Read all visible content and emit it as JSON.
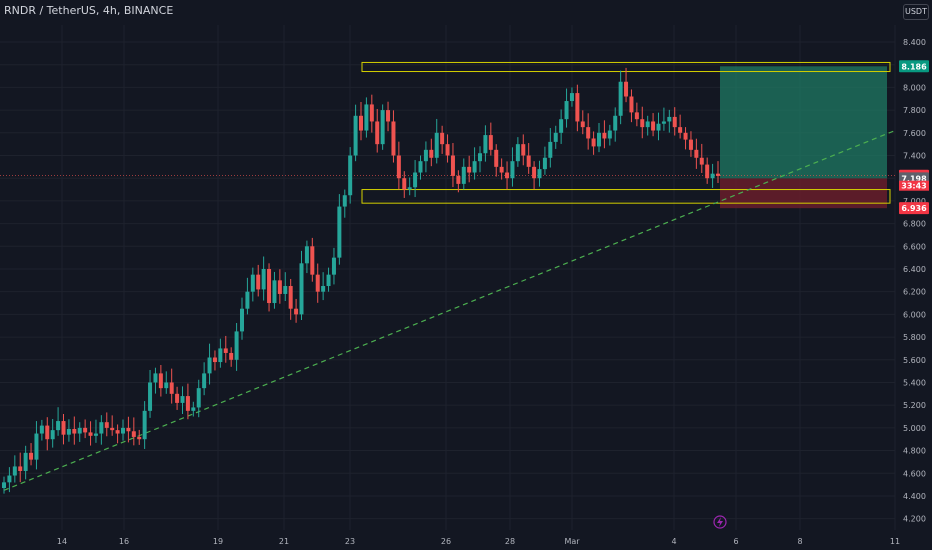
{
  "header": {
    "title": "RNDR / TetherUS, 4h, BINANCE",
    "currency": "USDT",
    "countdown": "33:43"
  },
  "colors": {
    "background": "#131722",
    "grid": "#1e222d",
    "up": "#26a69a",
    "down": "#ef5350",
    "zone": "#d4d000",
    "trendline": "#4caf50",
    "target_fill": "#1f7a63",
    "stop_fill": "#6e1e2c"
  },
  "chart_data": {
    "type": "candlestick",
    "interval": "4h",
    "ylim": [
      4.1,
      8.55
    ],
    "y_ticks": [
      4.2,
      4.4,
      4.6,
      4.8,
      5.0,
      5.2,
      5.4,
      5.6,
      5.8,
      6.0,
      6.2,
      6.4,
      6.6,
      6.8,
      7.0,
      7.2,
      7.4,
      7.6,
      7.8,
      8.0,
      8.2,
      8.4
    ],
    "x_ticks": [
      "14",
      "16",
      "19",
      "21",
      "23",
      "26",
      "28",
      "Mar",
      "4",
      "6",
      "8",
      "11"
    ],
    "close_series": [
      4.52,
      4.58,
      4.66,
      4.62,
      4.78,
      4.72,
      4.95,
      5.02,
      4.9,
      4.98,
      5.06,
      4.94,
      4.99,
      4.95,
      5.0,
      4.96,
      4.93,
      4.95,
      5.05,
      5.0,
      4.98,
      4.95,
      5.0,
      4.97,
      4.92,
      4.9,
      5.15,
      5.4,
      5.48,
      5.35,
      5.4,
      5.3,
      5.22,
      5.28,
      5.15,
      5.18,
      5.35,
      5.48,
      5.62,
      5.58,
      5.7,
      5.66,
      5.6,
      5.85,
      6.05,
      6.2,
      6.35,
      6.22,
      6.4,
      6.1,
      6.3,
      6.18,
      6.25,
      6.05,
      6.0,
      6.45,
      6.6,
      6.35,
      6.2,
      6.25,
      6.35,
      6.5,
      6.95,
      7.05,
      7.4,
      7.75,
      7.62,
      7.85,
      7.7,
      7.5,
      7.8,
      7.7,
      7.4,
      7.2,
      7.1,
      7.12,
      7.25,
      7.35,
      7.45,
      7.38,
      7.6,
      7.5,
      7.4,
      7.22,
      7.15,
      7.3,
      7.25,
      7.35,
      7.42,
      7.58,
      7.45,
      7.3,
      7.25,
      7.2,
      7.35,
      7.5,
      7.4,
      7.3,
      7.2,
      7.28,
      7.38,
      7.52,
      7.6,
      7.72,
      7.88,
      7.95,
      7.7,
      7.65,
      7.55,
      7.48,
      7.6,
      7.55,
      7.62,
      7.75,
      8.05,
      7.92,
      7.78,
      7.72,
      7.65,
      7.7,
      7.62,
      7.68,
      7.7,
      7.74,
      7.65,
      7.6,
      7.54,
      7.45,
      7.38,
      7.32,
      7.2,
      7.24,
      7.22
    ],
    "zones": [
      {
        "top": 8.22,
        "bottom": 8.14
      },
      {
        "top": 7.1,
        "bottom": 6.98
      }
    ],
    "trendline": {
      "from_index": 0,
      "from_price": 4.45,
      "to_price": 7.62
    },
    "position": {
      "entry": 7.198,
      "target": 8.186,
      "stop": 6.936
    },
    "price_labels": [
      {
        "text": "8.186",
        "value": 8.186,
        "color": "#089981"
      },
      {
        "text": "7.222",
        "value": 7.222,
        "color": "#f23645"
      },
      {
        "text": "7.198",
        "value": 7.198,
        "color": "#5d606b"
      },
      {
        "text": "6.936",
        "value": 6.936,
        "color": "#f23645"
      }
    ]
  }
}
